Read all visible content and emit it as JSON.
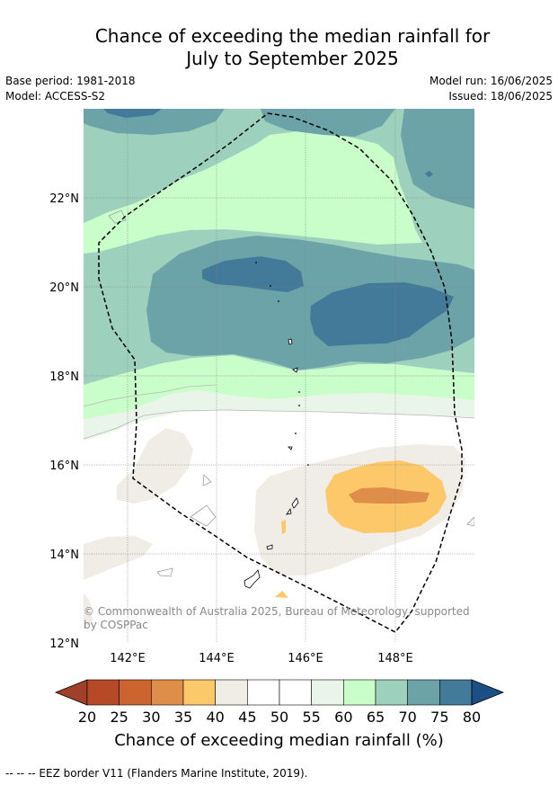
{
  "title_line1": "Chance of exceeding the median rainfall for",
  "title_line2": "July to September 2025",
  "meta_left": {
    "base_period": "Base period: 1981-2018",
    "model": "Model: ACCESS-S2"
  },
  "meta_right": {
    "model_run": "Model run: 16/06/2025",
    "issued": "Issued: 18/06/2025"
  },
  "lat_ticks": [
    "22°N",
    "20°N",
    "18°N",
    "16°N",
    "14°N",
    "12°N"
  ],
  "lon_ticks": [
    "142°E",
    "144°E",
    "146°E",
    "148°E"
  ],
  "copyright": [
    "© Commonwealth of Australia 2025, Bureau of Meteorology, supported",
    "by COSPPac"
  ],
  "colorbar": {
    "ticks": [
      "20",
      "25",
      "30",
      "35",
      "40",
      "45",
      "50",
      "55",
      "60",
      "65",
      "70",
      "75",
      "80"
    ],
    "colors": [
      "#a1402a",
      "#b64a26",
      "#cc6430",
      "#de8e48",
      "#fdc86a",
      "#f0ece6",
      "#ffffff",
      "#ffffff",
      "#eaf5ea",
      "#c9fdc9",
      "#9dd1bd",
      "#6ca3a8",
      "#437a99",
      "#1b5086"
    ],
    "label": "Chance of exceeding median rainfall (%)"
  },
  "footer": "--  --  -- EEZ border V11 (Flanders Marine Institute, 2019)."
}
